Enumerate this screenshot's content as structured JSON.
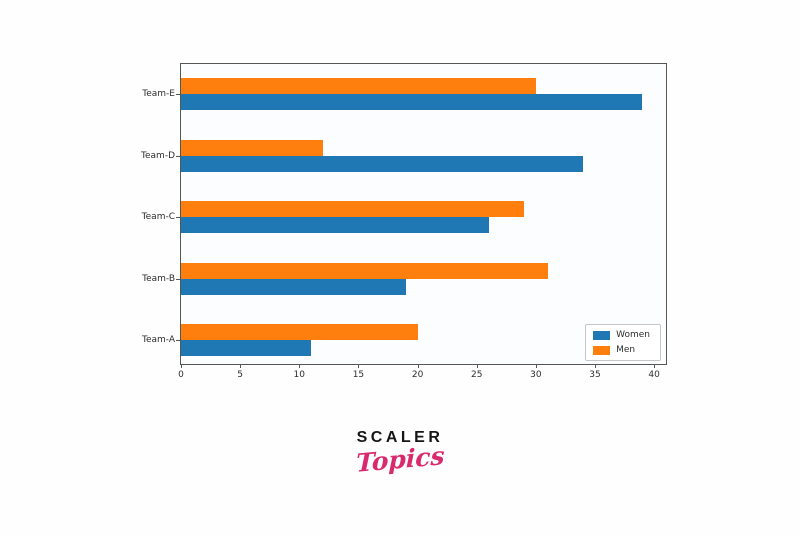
{
  "chart_data": {
    "type": "bar",
    "orientation": "horizontal",
    "title": "",
    "xlabel": "",
    "ylabel": "",
    "categories": [
      "Team-A",
      "Team-B",
      "Team-C",
      "Team-D",
      "Team-E"
    ],
    "categories_order_note": "Team-A at bottom, Team-E at top",
    "series": [
      {
        "name": "Women",
        "color": "#1f77b4",
        "values": [
          11,
          19,
          26,
          34,
          39
        ]
      },
      {
        "name": "Men",
        "color": "#ff7f0e",
        "values": [
          20,
          31,
          29,
          12,
          30
        ]
      }
    ],
    "x_ticks": [
      0,
      5,
      10,
      15,
      20,
      25,
      30,
      35,
      40
    ],
    "xlim": [
      0,
      41
    ],
    "grid": false,
    "legend_position": "lower right",
    "spine_color": "#565656",
    "tick_label_color": "#2e2e2e"
  },
  "branding": {
    "line1": "SCALER",
    "line2": "Topics",
    "accent_color": "#d92a6e"
  }
}
